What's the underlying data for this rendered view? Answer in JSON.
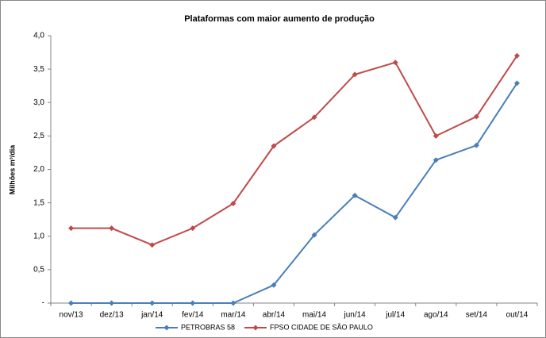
{
  "chart_data": {
    "type": "line",
    "title": "Plataformas com maior aumento de produção",
    "y_label": "Milhões m³/dia",
    "categories": [
      "nov/13",
      "dez/13",
      "jan/14",
      "fev/14",
      "mar/14",
      "abr/14",
      "mai/14",
      "jun/14",
      "jul/14",
      "ago/14",
      "set/14",
      "out/14"
    ],
    "series": [
      {
        "name": "PETROBRAS 58",
        "color": "#4a7ebb",
        "values": [
          0,
          0,
          0,
          0,
          0,
          0.27,
          1.02,
          1.61,
          1.28,
          2.14,
          2.36,
          3.29
        ]
      },
      {
        "name": "FPSO CIDADE DE SÃO PAULO",
        "color": "#be4b48",
        "values": [
          1.12,
          1.12,
          0.87,
          1.12,
          1.49,
          2.35,
          2.78,
          3.42,
          3.6,
          2.5,
          2.79,
          3.7
        ]
      }
    ],
    "ylim": [
      0,
      4
    ],
    "yticks": [
      {
        "value": 0,
        "label": "-"
      },
      {
        "value": 0.5,
        "label": "0,5"
      },
      {
        "value": 1,
        "label": "1,0"
      },
      {
        "value": 1.5,
        "label": "1,5"
      },
      {
        "value": 2,
        "label": "2,0"
      },
      {
        "value": 2.5,
        "label": "2,5"
      },
      {
        "value": 3,
        "label": "3,0"
      },
      {
        "value": 3.5,
        "label": "3,5"
      },
      {
        "value": 4,
        "label": "4,0"
      }
    ],
    "grid": false,
    "legend": "bottom"
  }
}
